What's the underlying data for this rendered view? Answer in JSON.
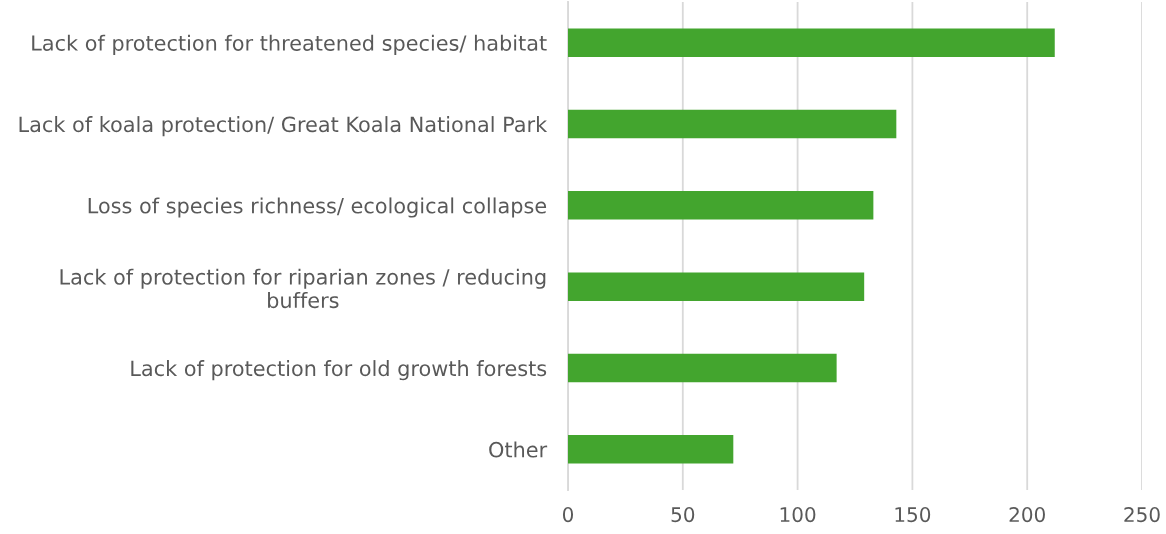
{
  "chart_data": {
    "type": "bar",
    "orientation": "horizontal",
    "categories": [
      "Lack of protection for threatened species/ habitat",
      "Lack of koala protection/ Great Koala National Park",
      "Loss of species richness/ ecological collapse",
      "Lack of protection for riparian zones / reducing buffers",
      "Lack of protection for old growth forests",
      "Other"
    ],
    "values": [
      212,
      143,
      133,
      129,
      117,
      72
    ],
    "color": "#43a52e",
    "xlim": [
      0,
      250
    ],
    "xticks": [
      0,
      50,
      100,
      150,
      200,
      250
    ],
    "grid": "x",
    "legend": false
  }
}
